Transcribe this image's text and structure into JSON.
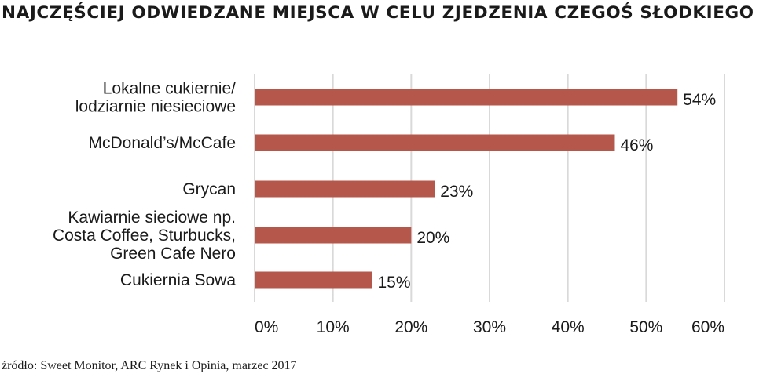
{
  "chart_data": {
    "type": "bar",
    "orientation": "horizontal",
    "title": "NAJCZĘŚCIEJ ODWIEDZANE MIEJSCA W CELU ZJEDZENIA CZEGOŚ SŁODKIEGO",
    "categories": [
      [
        "Lokalne cukiernie/",
        "lodziarnie niesieciowe"
      ],
      [
        "McDonald’s/McCafe"
      ],
      [
        "Grycan"
      ],
      [
        "Kawiarnie sieciowe np.",
        "Costa Coffee, Sturbucks,",
        "Green Cafe Nero"
      ],
      [
        "Cukiernia Sowa"
      ]
    ],
    "values": [
      54,
      46,
      23,
      20,
      15
    ],
    "value_labels": [
      "54%",
      "46%",
      "23%",
      "20%",
      "15%"
    ],
    "xlim": [
      0,
      60
    ],
    "x_ticks": [
      0,
      10,
      20,
      30,
      40,
      50,
      60
    ],
    "x_tick_labels": [
      "0%",
      "10%",
      "20%",
      "30%",
      "40%",
      "50%",
      "60%"
    ],
    "grid": "vertical",
    "bar_color": "#b5574b",
    "grid_color": "#d9d9d9"
  },
  "source": "źródło: Sweet Monitor, ARC Rynek i Opinia, marzec 2017"
}
